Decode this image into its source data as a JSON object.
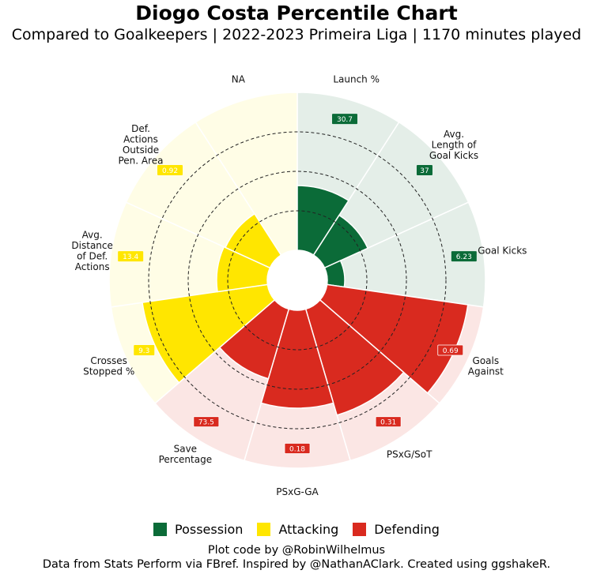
{
  "title": "Diogo Costa Percentile Chart",
  "subtitle": "Compared to Goalkeepers | 2022-2023 Primeira Liga | 1170 minutes played",
  "colors": {
    "Possession": "#0b6b38",
    "Attacking": "#ffe600",
    "Defending": "#d92a1f",
    "Possession_bg": "#e4eee8",
    "Attacking_bg": "#fffde6",
    "Defending_bg": "#fbe6e4"
  },
  "chart_data": {
    "type": "polar-bar",
    "range": [
      0,
      100
    ],
    "gridlines": [
      25,
      50,
      75
    ],
    "categories": [
      "Launch %",
      "Avg.\nLength of\nGoal Kicks",
      "Goal Kicks",
      "Goals\nAgainst",
      "PSxG/SoT",
      "PSxG-GA",
      "Save\nPercentage",
      "Crosses\nStopped %",
      "Avg.\nDistance\nof Def.\nActions",
      "Def.\nActions\nOutside\nPen. Area",
      "NA"
    ],
    "groups": [
      "Possession",
      "Possession",
      "Possession",
      "Defending",
      "Defending",
      "Defending",
      "Defending",
      "Attacking",
      "Attacking",
      "Attacking",
      "Attacking"
    ],
    "percentiles": [
      41,
      30,
      11,
      90,
      70,
      62,
      46,
      80,
      32,
      31,
      0
    ],
    "value_labels": [
      "30.7",
      "37",
      "6.23",
      "0.69",
      "0.31",
      "0.18",
      "73.5",
      "9.3",
      "13.4",
      "0.92",
      null
    ]
  },
  "legend": [
    {
      "label": "Possession",
      "color": "#0b6b38"
    },
    {
      "label": "Attacking",
      "color": "#ffe600"
    },
    {
      "label": "Defending",
      "color": "#d92a1f"
    }
  ],
  "footer": {
    "line1": "Plot code by @RobinWilhelmus",
    "line2": "Data from Stats Perform via FBref. Inspired by @NathanAClark. Created using ggshakeR."
  }
}
